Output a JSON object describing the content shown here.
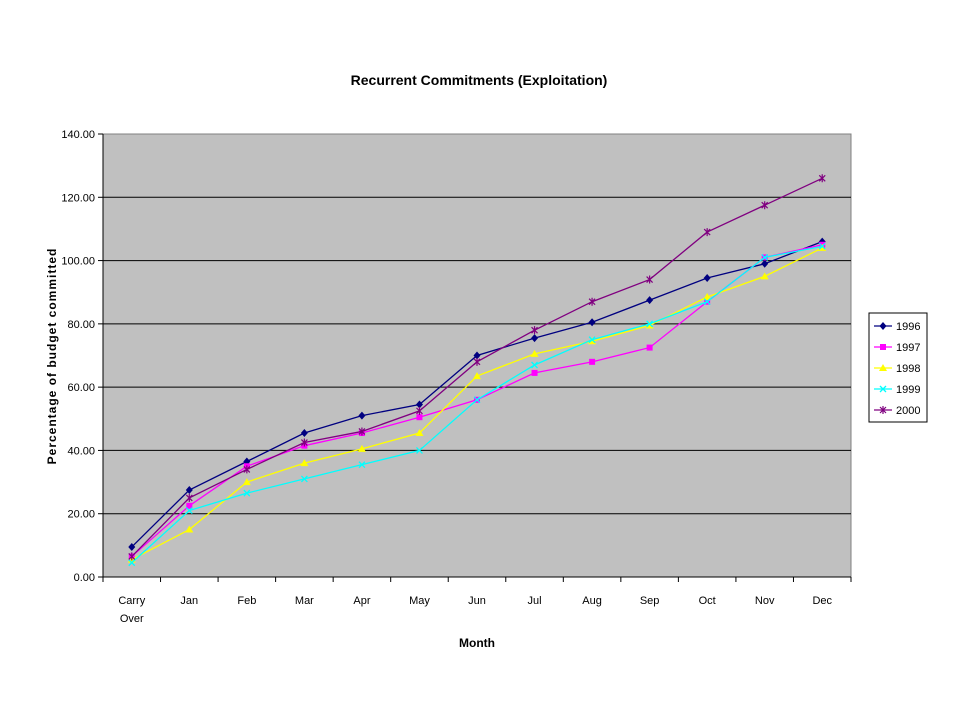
{
  "chart_data": {
    "type": "line",
    "title": "Recurrent Commitments (Exploitation)",
    "xlabel": "Month",
    "ylabel": "Percentage of budget committed",
    "categories": [
      "Carry Over",
      "Jan",
      "Feb",
      "Mar",
      "Apr",
      "May",
      "Jun",
      "Jul",
      "Aug",
      "Sep",
      "Oct",
      "Nov",
      "Dec"
    ],
    "category_lines": [
      [
        "Carry",
        "Over"
      ],
      [
        "Jan"
      ],
      [
        "Feb"
      ],
      [
        "Mar"
      ],
      [
        "Apr"
      ],
      [
        "May"
      ],
      [
        "Jun"
      ],
      [
        "Jul"
      ],
      [
        "Aug"
      ],
      [
        "Sep"
      ],
      [
        "Oct"
      ],
      [
        "Nov"
      ],
      [
        "Dec"
      ]
    ],
    "ylim": [
      0,
      140
    ],
    "yticks": [
      0,
      20,
      40,
      60,
      80,
      100,
      120,
      140
    ],
    "ytick_labels": [
      "0.00",
      "20.00",
      "40.00",
      "60.00",
      "80.00",
      "100.00",
      "120.00",
      "140.00"
    ],
    "grid": "horizontal major gridlines",
    "plot_background": "#c0c0c0",
    "legend_position": "right",
    "series": [
      {
        "name": "1996",
        "color": "#000080",
        "marker": "diamond",
        "values": [
          9.5,
          27.5,
          36.5,
          45.5,
          51,
          54.5,
          70,
          75.5,
          80.5,
          87.5,
          94.5,
          99,
          106
        ]
      },
      {
        "name": "1997",
        "color": "#ff00ff",
        "marker": "square",
        "values": [
          6.5,
          22.5,
          35,
          41.5,
          45.5,
          50.5,
          56,
          64.5,
          68,
          72.5,
          87,
          101,
          105
        ]
      },
      {
        "name": "1998",
        "color": "#ffff00",
        "marker": "triangle",
        "values": [
          5.5,
          15,
          30,
          36,
          40.5,
          45.5,
          63.5,
          70.5,
          74.5,
          79.5,
          88.5,
          95,
          104
        ]
      },
      {
        "name": "1999",
        "color": "#00ffff",
        "marker": "x",
        "values": [
          4.5,
          21,
          26.5,
          31,
          35.5,
          40,
          56,
          67,
          75,
          80,
          87,
          101,
          104.5
        ]
      },
      {
        "name": "2000",
        "color": "#800080",
        "marker": "star",
        "values": [
          6.5,
          25,
          34,
          42.5,
          46,
          52.5,
          68,
          78,
          87,
          94,
          109,
          117.5,
          126
        ]
      }
    ]
  }
}
